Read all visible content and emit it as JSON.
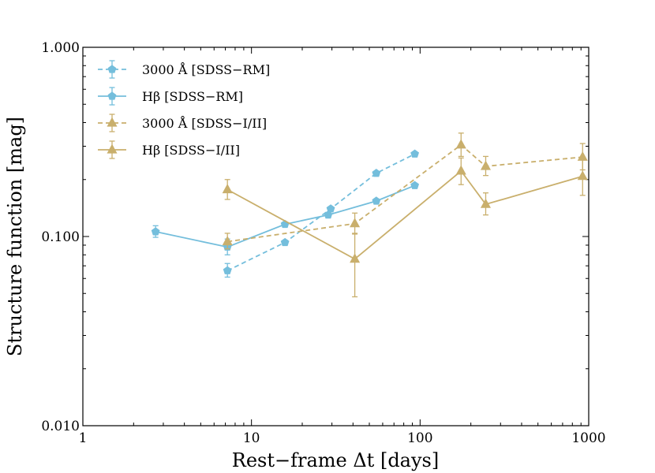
{
  "chart_data": {
    "type": "line",
    "title": "",
    "xlabel": "Rest−frame Δt [days]",
    "ylabel": "Structure function [mag]",
    "xscale": "log",
    "yscale": "log",
    "xlim": [
      1,
      1000
    ],
    "ylim": [
      0.01,
      1.0
    ],
    "xticks": [
      {
        "value": 1,
        "label": "1"
      },
      {
        "value": 10,
        "label": "10"
      },
      {
        "value": 100,
        "label": "100"
      },
      {
        "value": 1000,
        "label": "1000"
      }
    ],
    "yticks": [
      {
        "value": 0.01,
        "label": "0.010"
      },
      {
        "value": 0.1,
        "label": "0.100"
      },
      {
        "value": 1.0,
        "label": "1.000"
      }
    ],
    "grid": false,
    "legend_position": "top-left",
    "series": [
      {
        "name": "3000 Å [SDSS−RM]",
        "color": "#74BEDC",
        "linestyle": "dashed",
        "marker": "pentagon",
        "points": [
          {
            "x": 7.2,
            "y": 0.066,
            "lo": 0.061,
            "hi": 0.072
          },
          {
            "x": 15.8,
            "y": 0.093,
            "lo": 0.091,
            "hi": 0.095
          },
          {
            "x": 29.5,
            "y": 0.14,
            "lo": 0.137,
            "hi": 0.143
          },
          {
            "x": 55,
            "y": 0.216,
            "lo": 0.211,
            "hi": 0.221
          },
          {
            "x": 93,
            "y": 0.273,
            "lo": 0.267,
            "hi": 0.279
          }
        ]
      },
      {
        "name": "Hβ [SDSS−RM]",
        "color": "#74BEDC",
        "linestyle": "solid",
        "marker": "pentagon",
        "points": [
          {
            "x": 2.7,
            "y": 0.106,
            "lo": 0.099,
            "hi": 0.114
          },
          {
            "x": 7.2,
            "y": 0.088,
            "lo": 0.08,
            "hi": 0.097
          },
          {
            "x": 15.8,
            "y": 0.116,
            "lo": 0.113,
            "hi": 0.119
          },
          {
            "x": 28.5,
            "y": 0.13,
            "lo": 0.127,
            "hi": 0.133
          },
          {
            "x": 55,
            "y": 0.154,
            "lo": 0.15,
            "hi": 0.158
          },
          {
            "x": 93,
            "y": 0.186,
            "lo": 0.181,
            "hi": 0.191
          }
        ]
      },
      {
        "name": "3000 Å [SDSS−I/II]",
        "color": "#C9AF6C",
        "linestyle": "dashed",
        "marker": "triangle",
        "points": [
          {
            "x": 7.2,
            "y": 0.094,
            "lo": 0.086,
            "hi": 0.104
          },
          {
            "x": 41,
            "y": 0.117,
            "lo": 0.103,
            "hi": 0.133
          },
          {
            "x": 175,
            "y": 0.305,
            "lo": 0.265,
            "hi": 0.352
          },
          {
            "x": 245,
            "y": 0.235,
            "lo": 0.21,
            "hi": 0.265
          },
          {
            "x": 920,
            "y": 0.263,
            "lo": 0.225,
            "hi": 0.31
          }
        ]
      },
      {
        "name": "Hβ [SDSS−I/II]",
        "color": "#C9AF6C",
        "linestyle": "solid",
        "marker": "triangle",
        "points": [
          {
            "x": 7.2,
            "y": 0.177,
            "lo": 0.157,
            "hi": 0.2
          },
          {
            "x": 41,
            "y": 0.076,
            "lo": 0.048,
            "hi": 0.104
          },
          {
            "x": 175,
            "y": 0.222,
            "lo": 0.188,
            "hi": 0.26
          },
          {
            "x": 245,
            "y": 0.148,
            "lo": 0.13,
            "hi": 0.17
          },
          {
            "x": 920,
            "y": 0.208,
            "lo": 0.165,
            "hi": 0.258
          }
        ]
      }
    ]
  }
}
